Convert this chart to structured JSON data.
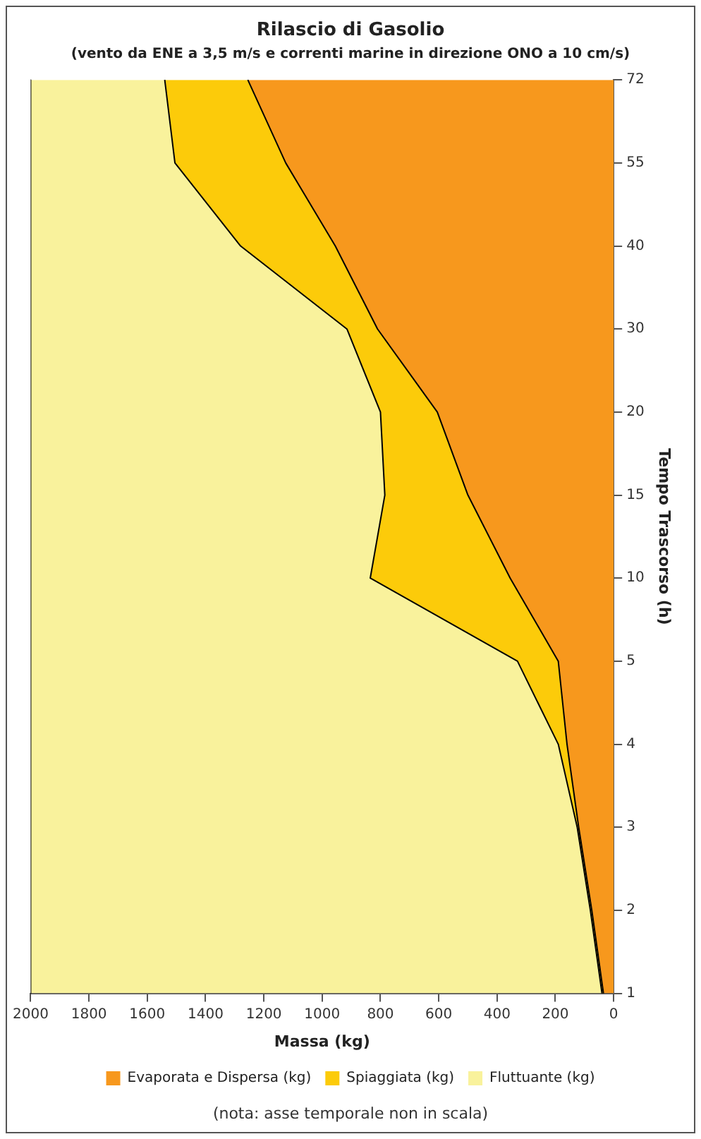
{
  "chart_data": {
    "type": "area",
    "orientation": "horizontal",
    "title": "Rilascio di Gasolio",
    "subtitle": "(vento da ENE a 3,5 m/s e correnti marine in direzione ONO a 10 cm/s)",
    "xlabel": "Massa (kg)",
    "ylabel": "Tempo Trascorso (h)",
    "annotations": [
      "(nota: asse temporale non in scala)"
    ],
    "categories": [
      "72",
      "55",
      "40",
      "30",
      "20",
      "15",
      "10",
      "5",
      "4",
      "3",
      "2",
      "1"
    ],
    "stacked": true,
    "series": [
      {
        "name": "Evaporata e Dispersa (kg)",
        "color": "#f7981d",
        "values": [
          1255,
          1125,
          955,
          810,
          605,
          500,
          355,
          190,
          160,
          120,
          75,
          35
        ]
      },
      {
        "name": "Spiaggiata (kg)",
        "color": "#fccb0a",
        "values": [
          285,
          380,
          325,
          105,
          195,
          285,
          480,
          140,
          30,
          5,
          5,
          5
        ]
      },
      {
        "name": "Fluttuante (kg)",
        "color": "#f9f29c",
        "values": [
          460,
          495,
          720,
          1085,
          1200,
          1215,
          1165,
          1670,
          1810,
          1875,
          1920,
          1960
        ]
      }
    ],
    "xlim": [
      2000,
      0
    ],
    "xticks": [
      2000,
      1800,
      1600,
      1400,
      1200,
      1000,
      800,
      600,
      400,
      200,
      0
    ],
    "grid": false,
    "legend": "bottom"
  }
}
